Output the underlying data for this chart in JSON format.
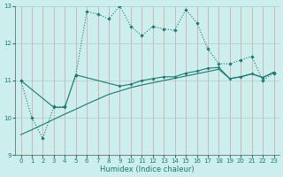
{
  "xlabel": "Humidex (Indice chaleur)",
  "background_color": "#cceeed",
  "grid_color_v": "#d4a0a0",
  "grid_color_h": "#b8d8d8",
  "line_color": "#1e7a6e",
  "xlim": [
    -0.5,
    23.5
  ],
  "ylim": [
    9,
    13
  ],
  "yticks": [
    9,
    10,
    11,
    12,
    13
  ],
  "xticks": [
    0,
    1,
    2,
    3,
    4,
    5,
    6,
    7,
    8,
    9,
    10,
    11,
    12,
    13,
    14,
    15,
    16,
    17,
    18,
    19,
    20,
    21,
    22,
    23
  ],
  "line1_x": [
    0,
    1,
    2,
    3,
    4,
    5,
    6,
    7,
    8,
    9,
    10,
    11,
    12,
    13,
    14,
    15,
    16,
    17,
    18,
    19,
    20,
    21,
    22,
    23
  ],
  "line1_y": [
    11.0,
    10.0,
    9.45,
    10.3,
    10.3,
    11.15,
    12.85,
    12.78,
    12.65,
    13.0,
    12.45,
    12.2,
    12.45,
    12.38,
    12.35,
    12.9,
    12.55,
    11.85,
    11.45,
    11.45,
    11.55,
    11.65,
    11.0,
    11.2
  ],
  "line2_x": [
    0,
    3,
    4,
    5,
    9,
    10,
    11,
    12,
    13,
    14,
    15,
    16,
    17,
    18,
    19,
    20,
    21,
    22,
    23
  ],
  "line2_y": [
    11.0,
    10.28,
    10.28,
    11.15,
    10.85,
    10.9,
    11.0,
    11.05,
    11.1,
    11.1,
    11.2,
    11.25,
    11.33,
    11.35,
    11.05,
    11.1,
    11.18,
    11.08,
    11.22
  ],
  "line3_x": [
    0,
    1,
    2,
    3,
    4,
    5,
    6,
    7,
    8,
    9,
    10,
    11,
    12,
    13,
    14,
    15,
    16,
    17,
    18,
    19,
    20,
    21,
    22,
    23
  ],
  "line3_y": [
    9.55,
    9.68,
    9.82,
    9.96,
    10.1,
    10.23,
    10.37,
    10.5,
    10.63,
    10.72,
    10.81,
    10.88,
    10.94,
    11.0,
    11.06,
    11.12,
    11.18,
    11.24,
    11.3,
    11.05,
    11.1,
    11.18,
    11.08,
    11.22
  ]
}
